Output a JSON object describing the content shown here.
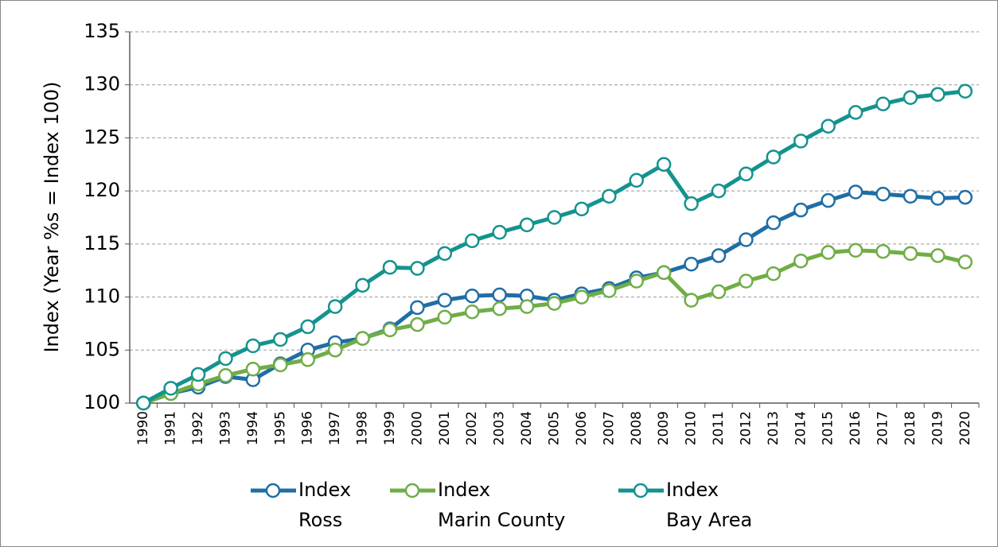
{
  "chart_data": {
    "type": "line",
    "y_label": "Index (Year %s = Index 100)",
    "categories": [
      "1990",
      "1991",
      "1992",
      "1993",
      "1994",
      "1995",
      "1996",
      "1997",
      "1998",
      "1999",
      "2000",
      "2001",
      "2002",
      "2003",
      "2004",
      "2005",
      "2006",
      "2007",
      "2008",
      "2009",
      "2010",
      "2011",
      "2012",
      "2013",
      "2014",
      "2015",
      "2016",
      "2017",
      "2018",
      "2019",
      "2020"
    ],
    "series": [
      {
        "name": "Index Ross",
        "color": "#1f6ea5",
        "values": [
          100,
          100.9,
          101.5,
          102.5,
          102.2,
          103.7,
          105.0,
          105.7,
          106.1,
          107.0,
          109.0,
          109.7,
          110.1,
          110.2,
          110.1,
          109.7,
          110.3,
          110.8,
          111.8,
          112.3,
          113.1,
          113.9,
          115.4,
          117.0,
          118.2,
          119.1,
          119.9,
          119.7,
          119.5,
          119.3,
          119.4
        ]
      },
      {
        "name": "Index Marin County",
        "color": "#70ad47",
        "values": [
          100,
          100.9,
          101.8,
          102.6,
          103.2,
          103.6,
          104.1,
          105.0,
          106.1,
          106.9,
          107.4,
          108.1,
          108.6,
          108.9,
          109.1,
          109.4,
          110.0,
          110.6,
          111.5,
          112.3,
          109.7,
          110.5,
          111.5,
          112.2,
          113.4,
          114.2,
          114.4,
          114.3,
          114.1,
          113.9,
          113.3
        ]
      },
      {
        "name": "Index Bay Area",
        "color": "#14938e",
        "values": [
          100,
          101.4,
          102.7,
          104.2,
          105.4,
          106.0,
          107.2,
          109.1,
          111.1,
          112.8,
          112.7,
          114.1,
          115.3,
          116.1,
          116.8,
          117.5,
          118.3,
          119.5,
          121.0,
          122.5,
          118.8,
          120.0,
          121.6,
          123.2,
          124.7,
          126.1,
          127.4,
          128.2,
          128.8,
          129.1,
          129.4
        ]
      }
    ],
    "ylim": [
      100,
      135
    ],
    "yticks": [
      100,
      105,
      110,
      115,
      120,
      125,
      130,
      135
    ],
    "grid": true,
    "legend": "bottom"
  }
}
